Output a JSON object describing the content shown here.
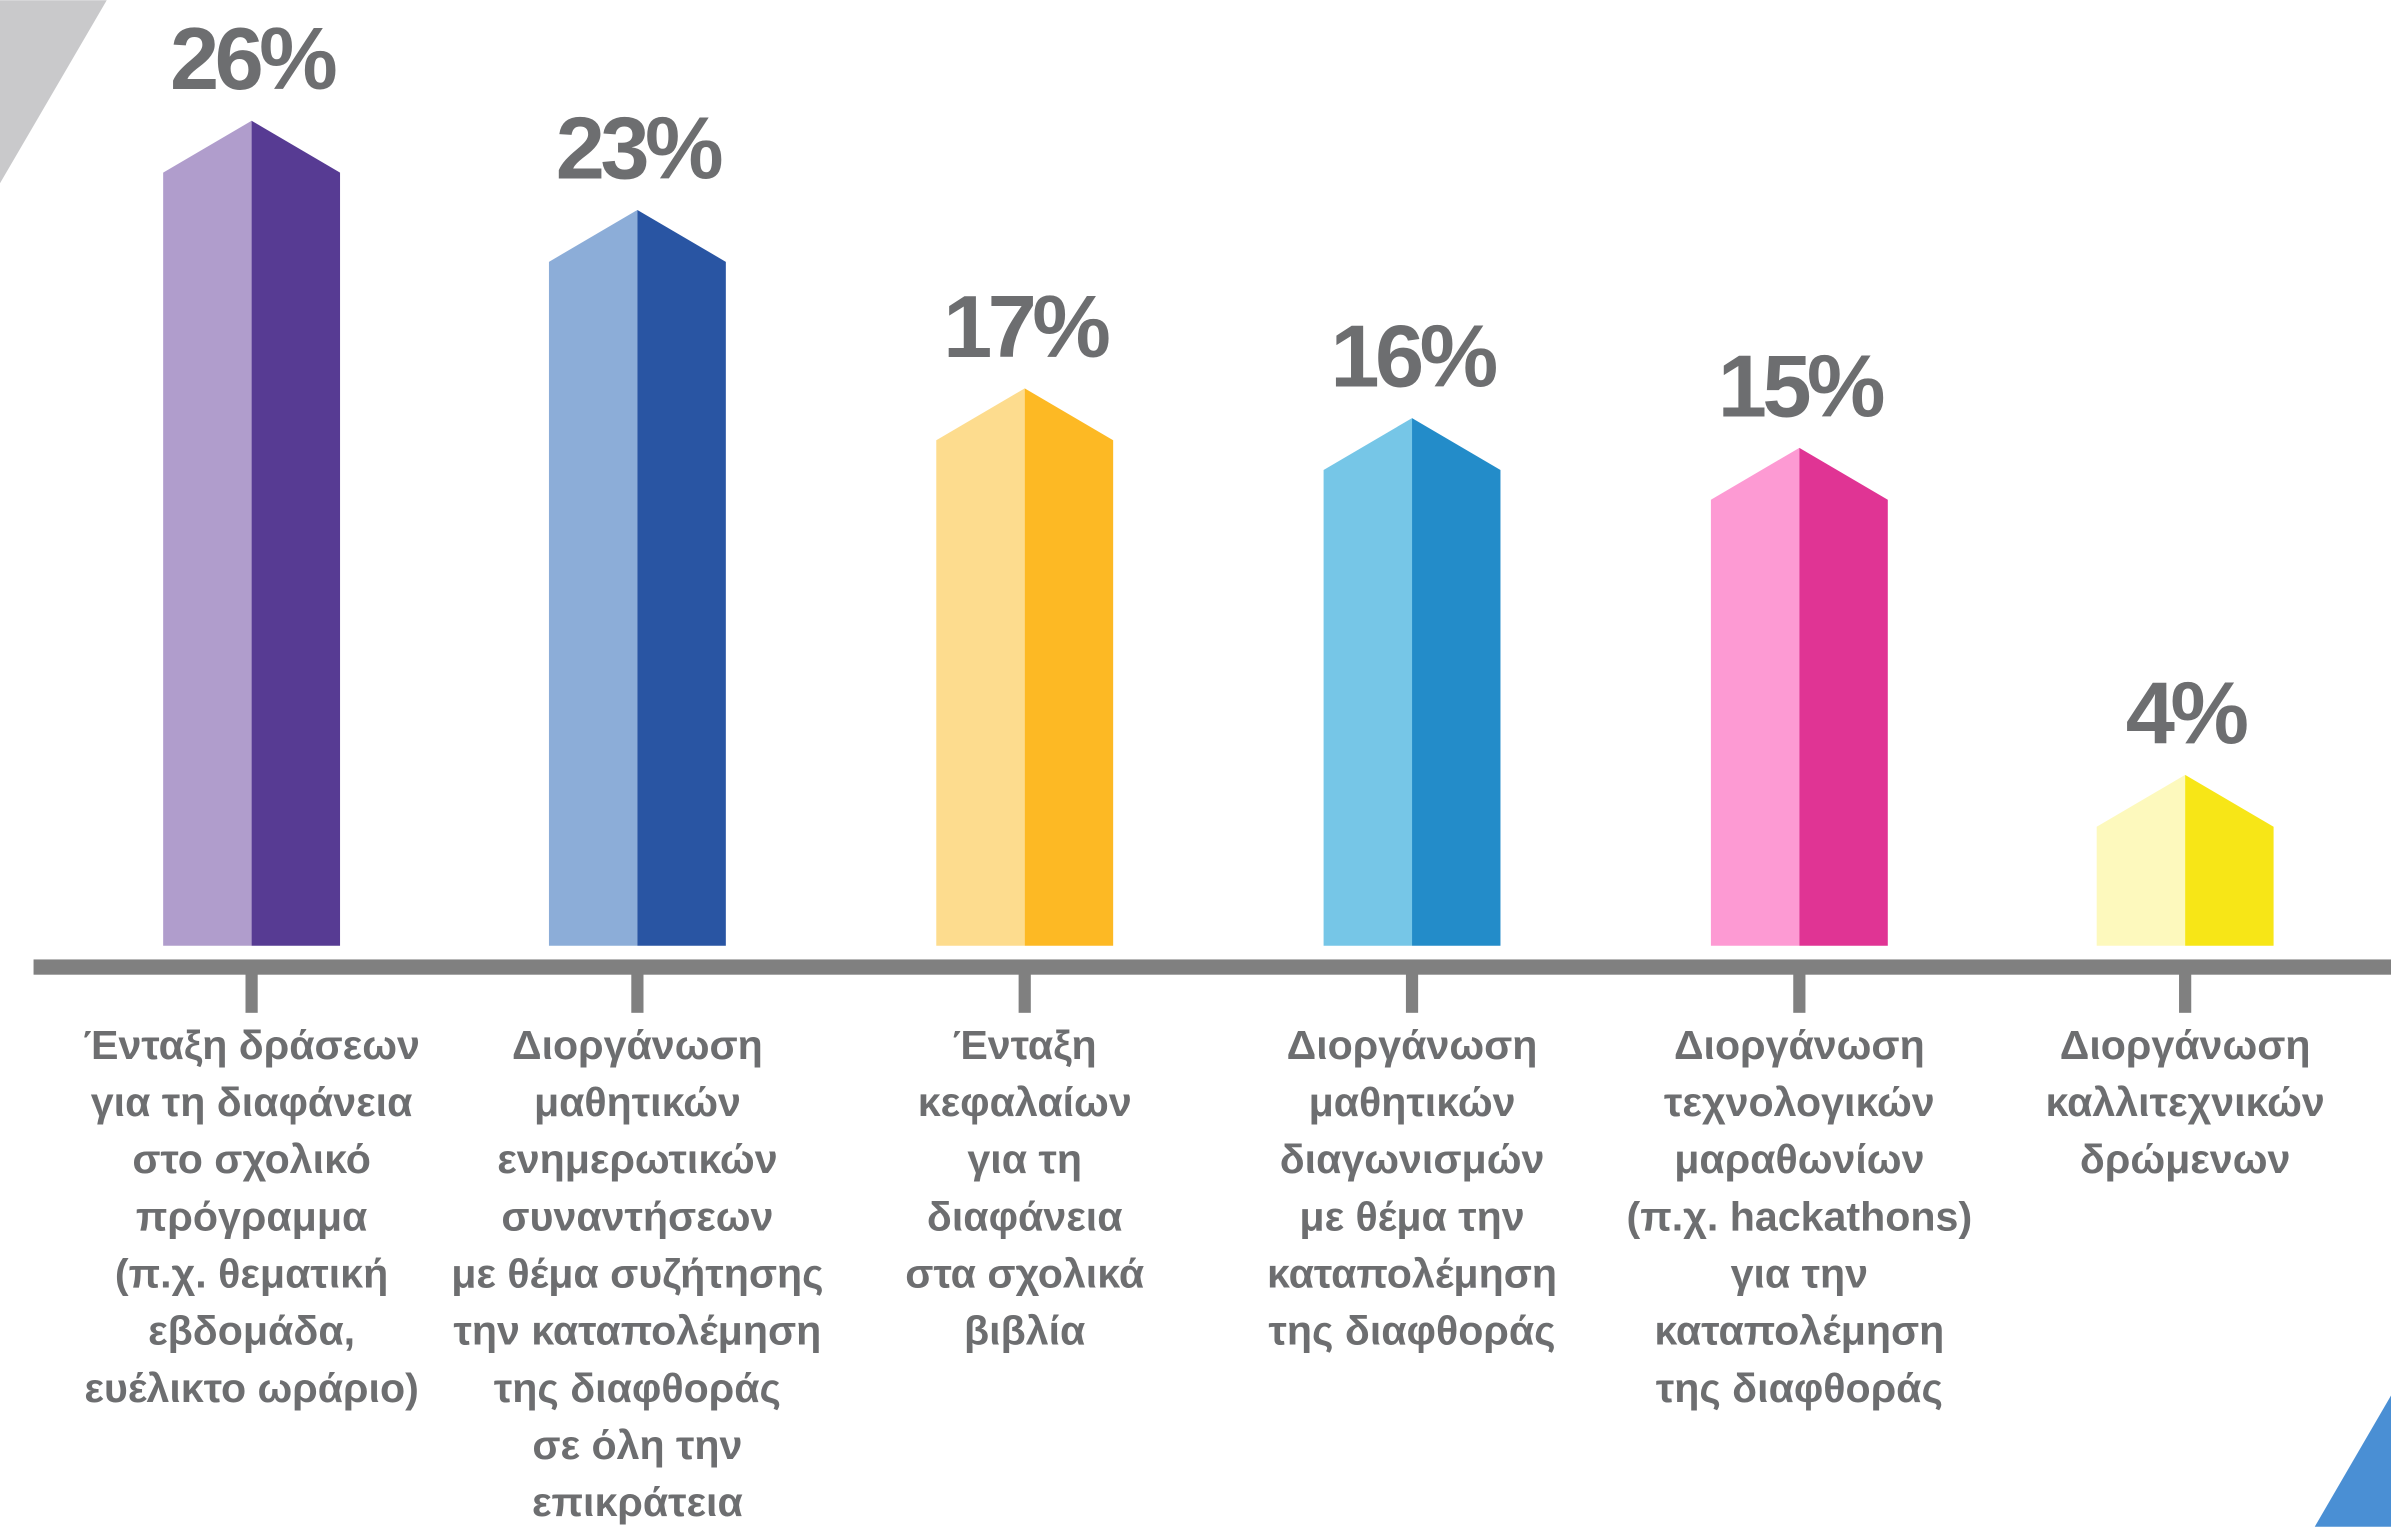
{
  "chart_data": {
    "type": "bar",
    "categories": [
      [
        "Ένταξη δράσεων",
        "για τη διαφάνεια",
        "στο σχολικό",
        "πρόγραμμα",
        "(π.χ. θεματική",
        "εβδομάδα,",
        "ευέλικτο ωράριο)"
      ],
      [
        "Διοργάνωση",
        "μαθητικών",
        "ενημερωτικών",
        "συναντήσεων",
        "με θέμα συζήτησης",
        "την καταπολέμηση",
        "της διαφθοράς",
        "σε όλη την",
        "επικράτεια"
      ],
      [
        "Ένταξη",
        "κεφαλαίων",
        "για τη",
        "διαφάνεια",
        "στα σχολικά",
        "βιβλία"
      ],
      [
        "Διοργάνωση",
        "μαθητικών",
        "διαγωνισμών",
        "με θέμα την",
        "καταπολέμηση",
        "της διαφθοράς"
      ],
      [
        "Διοργάνωση",
        "τεχνολογικών",
        "μαραθωνίων",
        "(π.χ. hackathons)",
        "για την",
        "καταπολέμηση",
        "της διαφθοράς"
      ],
      [
        "Διοργάνωση",
        "καλλιτεχνικών",
        "δρώμενων"
      ]
    ],
    "values": [
      26,
      23,
      17,
      16,
      15,
      4
    ],
    "value_labels": [
      "26%",
      "23%",
      "17%",
      "16%",
      "15%",
      "4%"
    ],
    "colors": [
      [
        "#b09dcc",
        "#573b93"
      ],
      [
        "#8cadd8",
        "#2955a3"
      ],
      [
        "#fddc8e",
        "#fdb924"
      ],
      [
        "#76c6e7",
        "#238cc9"
      ],
      [
        "#fd9ad3",
        "#e03494"
      ],
      [
        "#fdf9bd",
        "#f7e617"
      ]
    ]
  }
}
